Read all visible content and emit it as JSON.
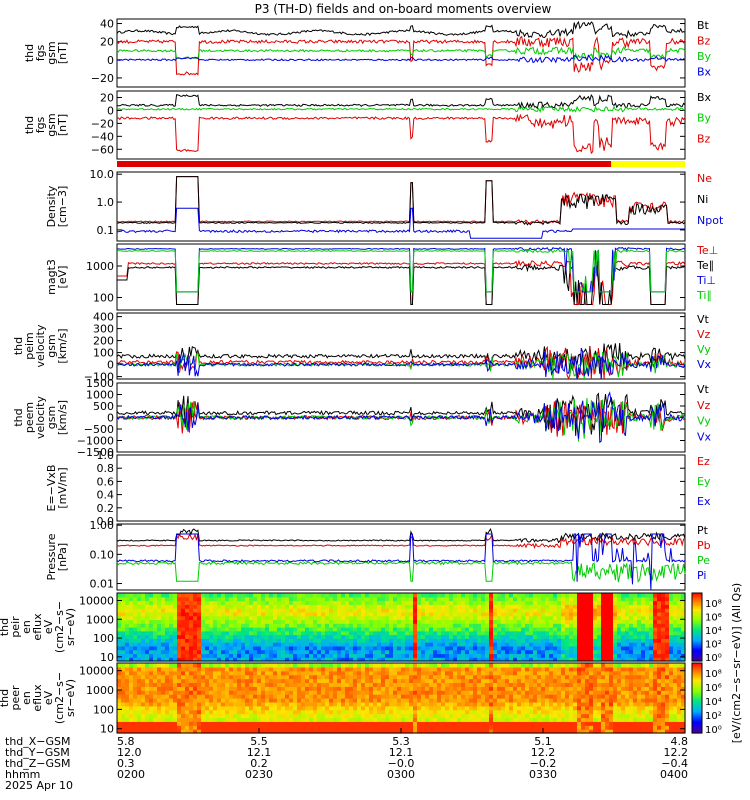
{
  "title": "P3 (TH-D) fields and on-board moments overview",
  "colors": {
    "black": "#000000",
    "red": "#e00000",
    "green": "#00cc00",
    "blue": "#0000e0",
    "yellow": "#ffff00",
    "orange": "#ff6a00"
  },
  "chart_data": [
    {
      "type": "line",
      "id": "fgs_mag",
      "ylabel": [
        "thd",
        "fgs",
        "gsm",
        "[nT]"
      ],
      "ylim": [
        -30,
        45
      ],
      "yticks": [
        {
          "v": 40,
          "t": "40"
        },
        {
          "v": 20,
          "t": "20"
        },
        {
          "v": 0,
          "t": "0"
        },
        {
          "v": -20,
          "t": "−20"
        }
      ],
      "series": [
        {
          "name": "Bt",
          "color": "black",
          "base": 30,
          "amp": 4,
          "pattern": "fgsmag_t"
        },
        {
          "name": "Bz",
          "color": "red",
          "base": 20,
          "amp": 6,
          "pattern": "fgsmag_z"
        },
        {
          "name": "By",
          "color": "green",
          "base": 10,
          "amp": 4,
          "pattern": "fgsmag_y"
        },
        {
          "name": "Bx",
          "color": "blue",
          "base": 0,
          "amp": 3,
          "pattern": "fgsmag_x"
        }
      ]
    },
    {
      "type": "line",
      "id": "fgs_gsm",
      "ylabel": [
        "thd",
        "fgs",
        "gsm",
        "[nT]"
      ],
      "ylim": [
        -75,
        30
      ],
      "yticks": [
        {
          "v": 20,
          "t": "20"
        },
        {
          "v": 0,
          "t": "0"
        },
        {
          "v": -20,
          "t": "−20"
        },
        {
          "v": -40,
          "t": "−40"
        },
        {
          "v": -60,
          "t": "−60"
        }
      ],
      "series": [
        {
          "name": "Bx",
          "color": "black",
          "base": 8,
          "amp": 5,
          "pattern": "fgs2_x"
        },
        {
          "name": "By",
          "color": "green",
          "base": 2,
          "amp": 4,
          "pattern": "fgs2_y"
        },
        {
          "name": "Bz",
          "color": "red",
          "base": -12,
          "amp": 6,
          "pattern": "fgs2_z"
        }
      ]
    },
    {
      "type": "line",
      "id": "density",
      "ylabel": [
        "Density",
        "[cm−3]"
      ],
      "ylog": true,
      "ylim": [
        0.04,
        12
      ],
      "yticks": [
        {
          "v": 10,
          "t": "10.0"
        },
        {
          "v": 1,
          "t": "1.0"
        },
        {
          "v": 0.1,
          "t": "0.1"
        }
      ],
      "series": [
        {
          "name": "Ne",
          "color": "red",
          "base": 0.2,
          "pattern": "dens"
        },
        {
          "name": "Ni",
          "color": "black",
          "base": 0.18,
          "pattern": "dens"
        },
        {
          "name": "Npot",
          "color": "blue",
          "base": 0.09,
          "pattern": "npot"
        }
      ]
    },
    {
      "type": "line",
      "id": "temperature",
      "ylabel": [
        "magt3",
        "[eV]"
      ],
      "ylog": true,
      "ylim": [
        40,
        5000
      ],
      "yticks": [
        {
          "v": 1000,
          "t": "1000"
        },
        {
          "v": 100,
          "t": "100"
        }
      ],
      "series": [
        {
          "name": "Te⊥",
          "color": "red",
          "base": 1200,
          "pattern": "temp"
        },
        {
          "name": "Te∥",
          "color": "black",
          "base": 900,
          "pattern": "temp"
        },
        {
          "name": "Ti⊥",
          "color": "blue",
          "base": 3500,
          "pattern": "tempi"
        },
        {
          "name": "Ti∥",
          "color": "green",
          "base": 3000,
          "pattern": "tempi"
        }
      ]
    },
    {
      "type": "line",
      "id": "peim_vel",
      "ylabel": [
        "thd",
        "peim",
        "velocity",
        "gsm",
        "[km/s]"
      ],
      "ylim": [
        -120,
        430
      ],
      "yticks": [
        {
          "v": 400,
          "t": "400"
        },
        {
          "v": 300,
          "t": "300"
        },
        {
          "v": 200,
          "t": "200"
        },
        {
          "v": 100,
          "t": "100"
        },
        {
          "v": 0,
          "t": "0"
        },
        {
          "v": -100,
          "t": "−100"
        }
      ],
      "series": [
        {
          "name": "Vt",
          "color": "black",
          "base": 70,
          "amp": 50,
          "pattern": "vel"
        },
        {
          "name": "Vz",
          "color": "red",
          "base": 20,
          "amp": 50,
          "pattern": "vel"
        },
        {
          "name": "Vy",
          "color": "green",
          "base": 0,
          "amp": 40,
          "pattern": "vel"
        },
        {
          "name": "Vx",
          "color": "blue",
          "base": 0,
          "amp": 40,
          "pattern": "vel"
        }
      ]
    },
    {
      "type": "line",
      "id": "peem_vel",
      "ylabel": [
        "thd",
        "peem",
        "velocity",
        "gsm",
        "[km/s]"
      ],
      "ylim": [
        -1500,
        1500
      ],
      "yticks": [
        {
          "v": 1500,
          "t": "1500"
        },
        {
          "v": 1000,
          "t": "1000"
        },
        {
          "v": 500,
          "t": "500"
        },
        {
          "v": 0,
          "t": "0"
        },
        {
          "v": -500,
          "t": "−500"
        },
        {
          "v": -1000,
          "t": "−1000"
        },
        {
          "v": -1500,
          "t": "−1500"
        }
      ],
      "series": [
        {
          "name": "Vt",
          "color": "black",
          "base": 200,
          "amp": 250,
          "pattern": "velE"
        },
        {
          "name": "Vz",
          "color": "red",
          "base": 0,
          "amp": 300,
          "pattern": "velE"
        },
        {
          "name": "Vy",
          "color": "green",
          "base": 0,
          "amp": 250,
          "pattern": "velE"
        },
        {
          "name": "Vx",
          "color": "blue",
          "base": 0,
          "amp": 250,
          "pattern": "velE"
        }
      ]
    },
    {
      "type": "line",
      "id": "efield",
      "ylabel": [
        "E=−VxB",
        "[mV/m]"
      ],
      "ylim": [
        0,
        1
      ],
      "yticks": [
        {
          "v": 1,
          "t": "1.0"
        },
        {
          "v": 0.8,
          "t": "0.8"
        },
        {
          "v": 0.6,
          "t": "0.6"
        },
        {
          "v": 0.4,
          "t": "0.4"
        },
        {
          "v": 0.2,
          "t": "0.2"
        },
        {
          "v": 0,
          "t": "0.0"
        }
      ],
      "series": [
        {
          "name": "Ez",
          "color": "red"
        },
        {
          "name": "Ey",
          "color": "green"
        },
        {
          "name": "Ex",
          "color": "blue"
        }
      ]
    },
    {
      "type": "line",
      "id": "pressure",
      "ylabel": [
        "Pressure",
        "[nPa]"
      ],
      "ylog": true,
      "ylim": [
        0.006,
        1.1
      ],
      "yticks": [
        {
          "v": 1,
          "t": "1.00"
        },
        {
          "v": 0.1,
          "t": "0.10"
        },
        {
          "v": 0.01,
          "t": "0.01"
        }
      ],
      "series": [
        {
          "name": "Pt",
          "color": "black",
          "base": 0.3,
          "pattern": "press"
        },
        {
          "name": "Pb",
          "color": "red",
          "base": 0.2,
          "pattern": "press"
        },
        {
          "name": "Pe",
          "color": "green",
          "base": 0.05,
          "pattern": "pressE"
        },
        {
          "name": "Pi",
          "color": "blue",
          "base": 0.06,
          "pattern": "pressI"
        }
      ]
    },
    {
      "type": "heatmap",
      "id": "peir_spec",
      "ylabel": [
        "thd",
        "peir",
        "en",
        "eflux",
        "eV",
        "(cm2−s−",
        "sr−eV)"
      ],
      "ylog": true,
      "ylim": [
        6,
        25000
      ],
      "yticks": [
        {
          "v": 10000,
          "t": "10000"
        },
        {
          "v": 1000,
          "t": "1000"
        },
        {
          "v": 100,
          "t": "100"
        },
        {
          "v": 10,
          "t": "10"
        }
      ]
    },
    {
      "type": "heatmap",
      "id": "peer_spec",
      "ylabel": [
        "thd",
        "peer",
        "en",
        "eflux",
        "eV",
        "(cm2−s−",
        "sr−eV)"
      ],
      "ylog": true,
      "ylim": [
        6,
        25000
      ],
      "yticks": [
        {
          "v": 10000,
          "t": "10000"
        },
        {
          "v": 1000,
          "t": "1000"
        },
        {
          "v": 100,
          "t": "100"
        },
        {
          "v": 10,
          "t": "10"
        }
      ]
    }
  ],
  "colorbar": {
    "label": "[eV/(cm2−s−sr−eV)] (All Qs)",
    "ticks": [
      "10⁸",
      "10⁶",
      "10⁴",
      "10²",
      "10⁰"
    ],
    "ticks2": [
      "10⁸",
      "10⁶",
      "10⁴",
      "10²",
      "10⁰"
    ]
  },
  "xaxis": {
    "rows": [
      {
        "label": "thd_X−GSM",
        "vals": [
          "5.8",
          "5.5",
          "5.3",
          "5.1",
          "4.8"
        ]
      },
      {
        "label": "thd_Y−GSM",
        "vals": [
          "12.0",
          "12.1",
          "12.1",
          "12.2",
          "12.2"
        ]
      },
      {
        "label": "thd_Z−GSM",
        "vals": [
          "0.3",
          "0.2",
          "−0.0",
          "−0.2",
          "−0.4"
        ]
      },
      {
        "label": "hhmm",
        "vals": [
          "0200",
          "0230",
          "0300",
          "0330",
          "0400"
        ]
      }
    ],
    "date": "2025 Apr 10"
  }
}
